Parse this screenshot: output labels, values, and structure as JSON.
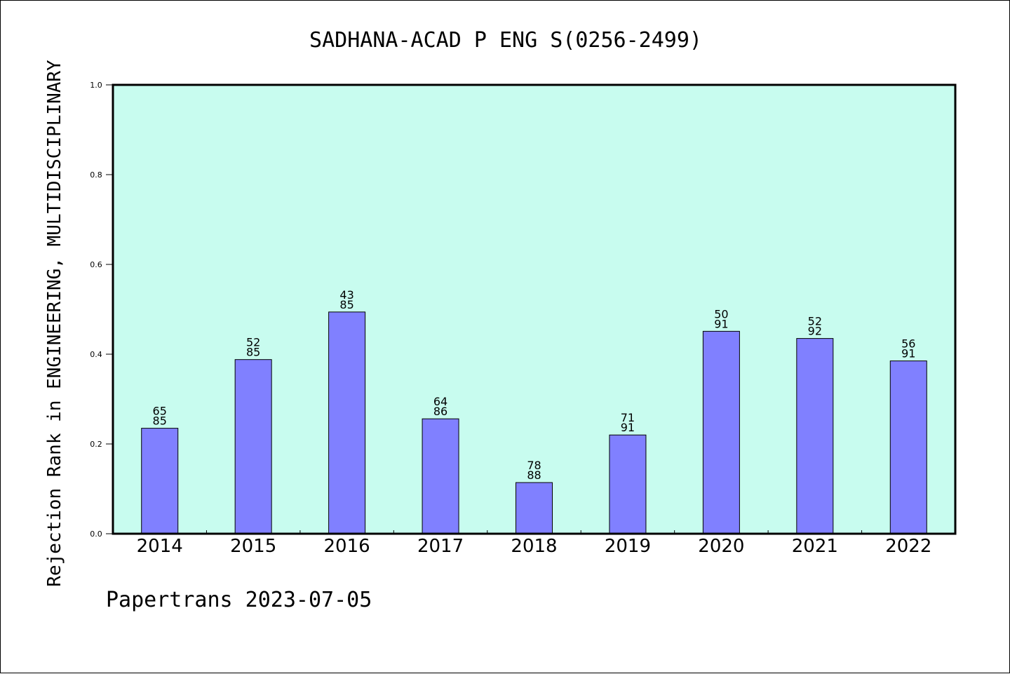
{
  "chart_data": {
    "type": "bar",
    "title": "SADHANA-ACAD P ENG S(0256-2499)",
    "ylabel": "Rejection Rank in ENGINEERING, MULTIDISCIPLINARY",
    "xlabel": "",
    "ylim": [
      0,
      1.0
    ],
    "yticks": [
      "0.0",
      "0.2",
      "0.4",
      "0.6",
      "0.8",
      "1.0"
    ],
    "ytick_values": [
      0,
      0.2,
      0.4,
      0.6,
      0.8,
      1.0
    ],
    "categories": [
      "2014",
      "2015",
      "2016",
      "2017",
      "2018",
      "2019",
      "2020",
      "2021",
      "2022"
    ],
    "values": [
      0.235,
      0.388,
      0.494,
      0.256,
      0.114,
      0.22,
      0.451,
      0.435,
      0.385
    ],
    "rank": [
      "65",
      "52",
      "43",
      "64",
      "78",
      "71",
      "50",
      "52",
      "56"
    ],
    "total": [
      "85",
      "85",
      "85",
      "86",
      "88",
      "91",
      "91",
      "92",
      "91"
    ],
    "grid": false,
    "legend": "none"
  },
  "footer": {
    "credit": "Papertrans 2023-07-05"
  },
  "colors": {
    "plot_background": "#c8fcef",
    "bar_fill": "#8080ff",
    "bar_stroke": "#000000",
    "axis": "#000000",
    "text": "#000000"
  }
}
